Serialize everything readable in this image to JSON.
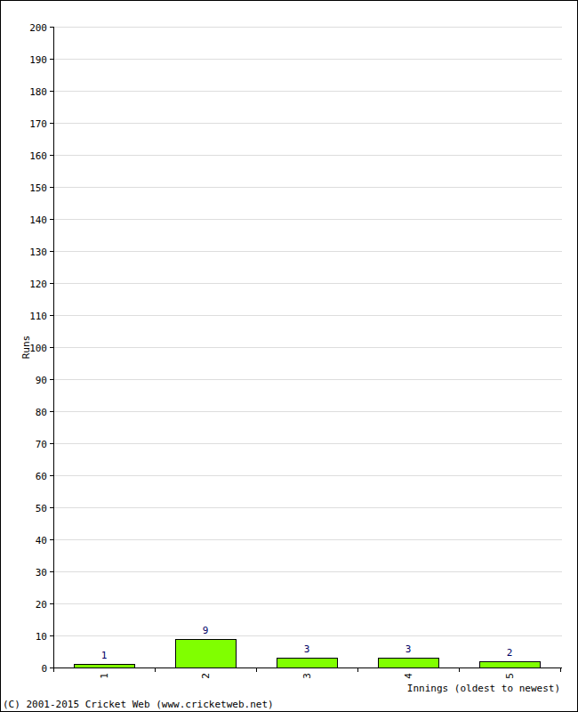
{
  "chart_data": {
    "type": "bar",
    "y_label": "Runs",
    "x_label": "Innings (oldest to newest)",
    "annotations": [
      "(C) 2001-2015 Cricket Web (www.cricketweb.net)"
    ],
    "categories": [
      "1",
      "2",
      "3",
      "4",
      "5"
    ],
    "values": [
      1,
      9,
      3,
      3,
      2
    ],
    "color": "#80ff00",
    "ylim": [
      0,
      200
    ],
    "yticks": [
      0,
      10,
      20,
      30,
      40,
      50,
      60,
      70,
      80,
      90,
      100,
      110,
      120,
      130,
      140,
      150,
      160,
      170,
      180,
      190,
      200
    ],
    "grid": true,
    "data_labels": true
  }
}
